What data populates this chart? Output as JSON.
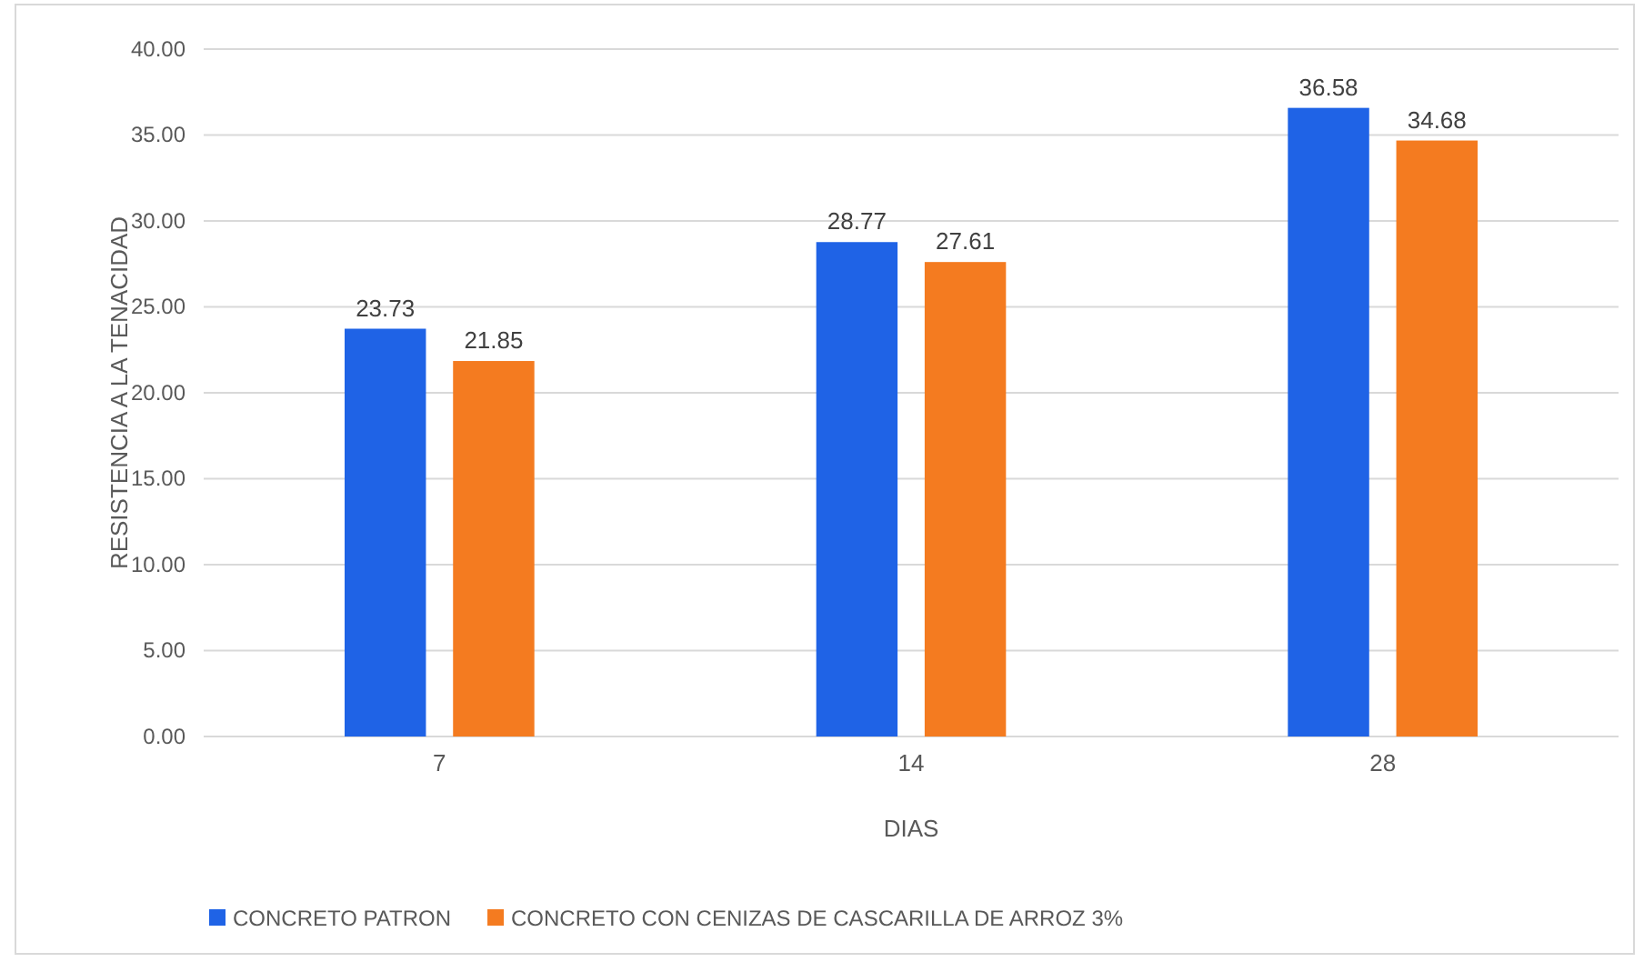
{
  "chart_data": {
    "type": "bar",
    "xlabel": "DIAS",
    "ylabel": "RESISTENCIA A LA TENACIDAD",
    "categories": [
      "7",
      "14",
      "28"
    ],
    "series": [
      {
        "name": "CONCRETO PATRON",
        "color": "#1f63e6",
        "values": [
          23.73,
          28.77,
          36.58
        ]
      },
      {
        "name": "CONCRETO CON CENIZAS DE CASCARILLA DE ARROZ 3%",
        "color": "#f47b20",
        "values": [
          21.85,
          27.61,
          34.68
        ]
      }
    ],
    "ylim": [
      0,
      40
    ],
    "yticks": [
      {
        "value": 0,
        "label": "0.00"
      },
      {
        "value": 5,
        "label": "5.00"
      },
      {
        "value": 10,
        "label": "10.00"
      },
      {
        "value": 15,
        "label": "15.00"
      },
      {
        "value": 20,
        "label": "20.00"
      },
      {
        "value": 25,
        "label": "25.00"
      },
      {
        "value": 30,
        "label": "30.00"
      },
      {
        "value": 35,
        "label": "35.00"
      },
      {
        "value": 40,
        "label": "40.00"
      }
    ],
    "grid": "y",
    "legend": "bottom",
    "data_labels": true
  }
}
